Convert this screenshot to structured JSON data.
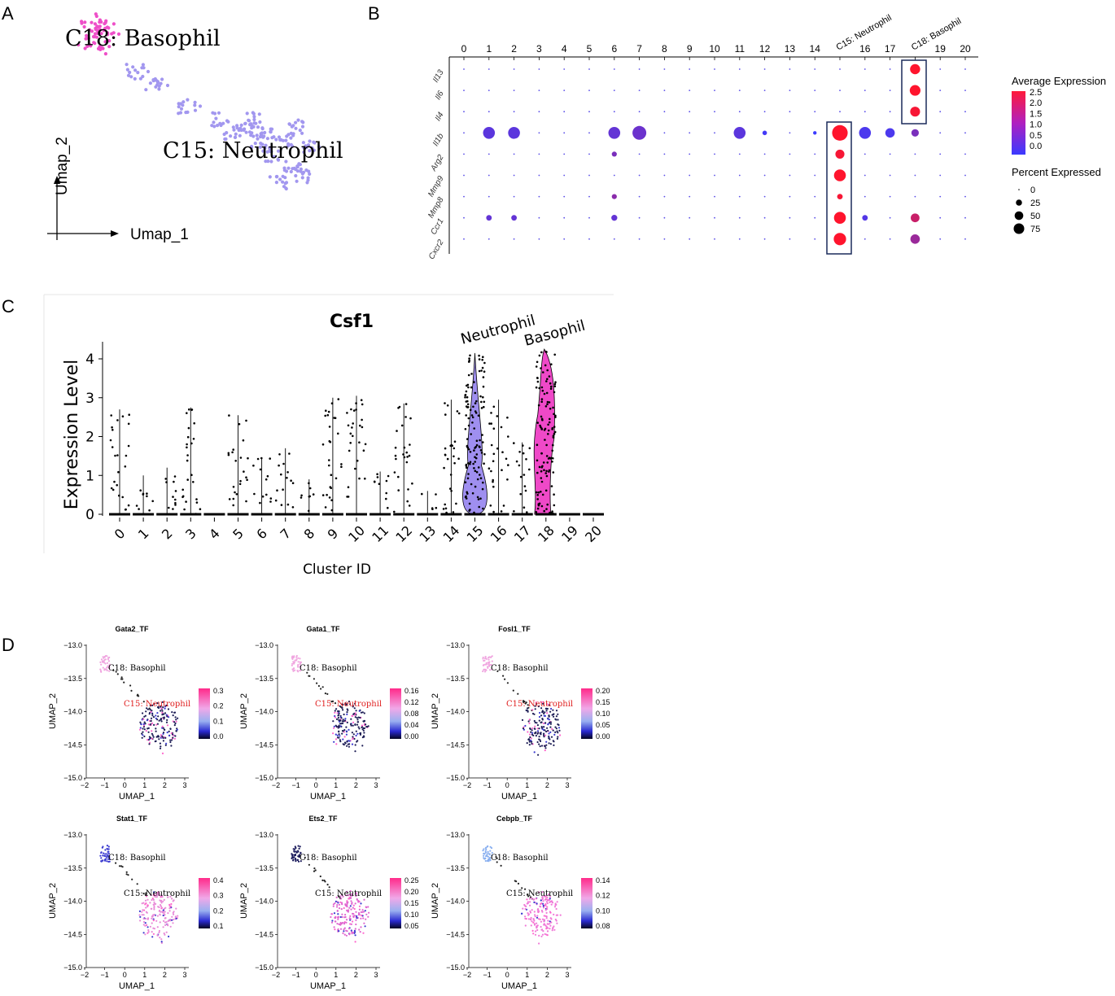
{
  "panel_labels": [
    "A",
    "B",
    "C",
    "D"
  ],
  "chart_data": [
    {
      "id": "A",
      "type": "scatter",
      "title": "",
      "xlabel": "Umap_1",
      "ylabel": "Umap_2",
      "annotations": [
        "C18: Basophil",
        "C15: Neutrophil"
      ],
      "series": [
        {
          "name": "C18: Basophil",
          "color": "#ee4fc8",
          "points": [
            [
              -1.2,
              -13.2
            ],
            [
              -1.1,
              -13.25
            ],
            [
              -1.0,
              -13.3
            ],
            [
              -1.15,
              -13.35
            ],
            [
              -1.05,
              -13.22
            ],
            [
              -0.95,
              -13.28
            ],
            [
              -1.1,
              -13.4
            ],
            [
              -1.2,
              -13.3
            ],
            [
              -0.9,
              -13.35
            ],
            [
              -1.0,
              -13.45
            ],
            [
              -0.85,
              -13.3
            ],
            [
              -1.25,
              -13.38
            ]
          ]
        },
        {
          "name": "C15: Neutrophil",
          "color": "#a297ef",
          "points": [
            [
              -0.5,
              -13.6
            ],
            [
              -0.2,
              -13.7
            ],
            [
              0.3,
              -13.85
            ],
            [
              0.8,
              -13.95
            ],
            [
              1.2,
              -14.0
            ],
            [
              1.5,
              -14.05
            ],
            [
              1.8,
              -14.1
            ],
            [
              2.0,
              -14.0
            ],
            [
              1.6,
              -14.2
            ],
            [
              1.9,
              -14.3
            ],
            [
              2.2,
              -14.15
            ],
            [
              1.4,
              -14.1
            ],
            [
              1.7,
              -14.4
            ],
            [
              2.1,
              -14.35
            ],
            [
              1.3,
              -13.95
            ],
            [
              1.0,
              -14.05
            ]
          ]
        }
      ]
    },
    {
      "id": "B",
      "type": "dotplot",
      "xlabel": "",
      "ylabel": "",
      "clusters": [
        "0",
        "1",
        "2",
        "3",
        "4",
        "5",
        "6",
        "7",
        "8",
        "9",
        "10",
        "11",
        "12",
        "13",
        "14",
        "C15: Neutrophil",
        "16",
        "17",
        "C18: Basophil",
        "19",
        "20"
      ],
      "genes": [
        "Il13",
        "Il6",
        "Il4",
        "Il1b",
        "Arg2",
        "Mmp9",
        "Mmp8",
        "Ccr1",
        "Cxcr2"
      ],
      "highlight_clusters": [
        "C15: Neutrophil",
        "C18: Basophil"
      ],
      "legend_title_color": "Average Expression",
      "legend_color_ticks": [
        "2.5",
        "2.0",
        "1.5",
        "1.0",
        "0.5",
        "0.0"
      ],
      "legend_title_size": "Percent Expressed",
      "legend_size_ticks": [
        "0",
        "25",
        "50",
        "75"
      ],
      "color_low": "#4b4bff",
      "color_high": "#ff1a1a",
      "dots": [
        {
          "gene": "Il13",
          "cluster": 18,
          "pct": 40,
          "avg": 2.5
        },
        {
          "gene": "Il6",
          "cluster": 18,
          "pct": 45,
          "avg": 2.5
        },
        {
          "gene": "Il4",
          "cluster": 18,
          "pct": 38,
          "avg": 2.4
        },
        {
          "gene": "Il1b",
          "cluster": 1,
          "pct": 55,
          "avg": 0.4
        },
        {
          "gene": "Il1b",
          "cluster": 2,
          "pct": 55,
          "avg": 0.4
        },
        {
          "gene": "Il1b",
          "cluster": 6,
          "pct": 55,
          "avg": 0.5
        },
        {
          "gene": "Il1b",
          "cluster": 7,
          "pct": 75,
          "avg": 0.6
        },
        {
          "gene": "Il1b",
          "cluster": 11,
          "pct": 55,
          "avg": 0.4
        },
        {
          "gene": "Il1b",
          "cluster": 12,
          "pct": 8,
          "avg": 0.1
        },
        {
          "gene": "Il1b",
          "cluster": 14,
          "pct": 5,
          "avg": 0.0
        },
        {
          "gene": "Il1b",
          "cluster": 15,
          "pct": 95,
          "avg": 2.5
        },
        {
          "gene": "Il1b",
          "cluster": 16,
          "pct": 55,
          "avg": 0.2
        },
        {
          "gene": "Il1b",
          "cluster": 17,
          "pct": 35,
          "avg": 0.2
        },
        {
          "gene": "Il1b",
          "cluster": 18,
          "pct": 22,
          "avg": 0.8
        },
        {
          "gene": "Arg2",
          "cluster": 6,
          "pct": 10,
          "avg": 0.8
        },
        {
          "gene": "Arg2",
          "cluster": 15,
          "pct": 32,
          "avg": 2.4
        },
        {
          "gene": "Mmp9",
          "cluster": 15,
          "pct": 55,
          "avg": 2.5
        },
        {
          "gene": "Mmp8",
          "cluster": 6,
          "pct": 10,
          "avg": 1.0
        },
        {
          "gene": "Mmp8",
          "cluster": 15,
          "pct": 12,
          "avg": 2.4
        },
        {
          "gene": "Ccr1",
          "cluster": 1,
          "pct": 12,
          "avg": 0.5
        },
        {
          "gene": "Ccr1",
          "cluster": 2,
          "pct": 12,
          "avg": 0.5
        },
        {
          "gene": "Ccr1",
          "cluster": 6,
          "pct": 14,
          "avg": 0.5
        },
        {
          "gene": "Ccr1",
          "cluster": 15,
          "pct": 55,
          "avg": 2.5
        },
        {
          "gene": "Ccr1",
          "cluster": 16,
          "pct": 12,
          "avg": 0.3
        },
        {
          "gene": "Ccr1",
          "cluster": 18,
          "pct": 30,
          "avg": 1.8
        },
        {
          "gene": "Cxcr2",
          "cluster": 15,
          "pct": 60,
          "avg": 2.5
        },
        {
          "gene": "Cxcr2",
          "cluster": 18,
          "pct": 35,
          "avg": 1.2
        }
      ]
    },
    {
      "id": "C",
      "type": "violin",
      "title": "Csf1",
      "xlabel": "Cluster ID",
      "ylabel": "Expression Level",
      "ylim": [
        0,
        4.3
      ],
      "yticks": [
        "0",
        "1",
        "2",
        "3",
        "4"
      ],
      "categories": [
        "0",
        "1",
        "2",
        "3",
        "4",
        "5",
        "6",
        "7",
        "8",
        "9",
        "10",
        "11",
        "12",
        "13",
        "14",
        "15",
        "16",
        "17",
        "18",
        "19",
        "20"
      ],
      "max_values": [
        2.7,
        1.0,
        1.2,
        2.75,
        0,
        2.55,
        1.45,
        1.7,
        0.9,
        3.0,
        3.05,
        1.1,
        2.85,
        0.6,
        2.95,
        4.15,
        2.95,
        1.85,
        4.25,
        0,
        0
      ],
      "violin_annotations": [
        "Neutrophil",
        "Basophil"
      ],
      "violin_colors": {
        "15": "#9f8ff0",
        "18": "#ef49c8"
      }
    },
    {
      "id": "D",
      "type": "scatter",
      "subplots": [
        {
          "title": "Gata2_TF",
          "legend_ticks": [
            "0.3",
            "0.2",
            "0.1",
            "0.0"
          ],
          "highlight_color": "#f0a6e0",
          "neutro_label_color": "#e02020",
          "cluster_color": "#1d1d55"
        },
        {
          "title": "Gata1_TF",
          "legend_ticks": [
            "0.16",
            "0.12",
            "0.08",
            "0.04",
            "0.00"
          ],
          "highlight_color": "#f0a6e0",
          "neutro_label_color": "#e02020",
          "cluster_color": "#1d1d55"
        },
        {
          "title": "Fosl1_TF",
          "legend_ticks": [
            "0.20",
            "0.15",
            "0.10",
            "0.05",
            "0.00"
          ],
          "highlight_color": "#f0a6e0",
          "neutro_label_color": "#e02020",
          "cluster_color": "#1d1d55"
        },
        {
          "title": "Stat1_TF",
          "legend_ticks": [
            "0.4",
            "0.3",
            "0.2",
            "0.1"
          ],
          "highlight_color": "#3a3ad0",
          "neutro_label_color": "#000000",
          "cluster_color": "#e88ad8"
        },
        {
          "title": "Ets2_TF",
          "legend_ticks": [
            "0.25",
            "0.20",
            "0.15",
            "0.10",
            "0.05"
          ],
          "highlight_color": "#18185a",
          "neutro_label_color": "#000000",
          "cluster_color": "#e066d0"
        },
        {
          "title": "Cebpb_TF",
          "legend_ticks": [
            "0.14",
            "0.12",
            "0.10",
            "0.08"
          ],
          "highlight_color": "#8ab0f0",
          "neutro_label_color": "#000000",
          "cluster_color": "#f07ad8"
        }
      ],
      "xlabel": "UMAP_1",
      "ylabel": "UMAP_2",
      "xticks": [
        "−2",
        "−1",
        "0",
        "1",
        "2",
        "3"
      ],
      "yticks": [
        "−13.0",
        "−13.5",
        "−14.0",
        "−14.5",
        "−15.0"
      ],
      "annotations": [
        "C18: Basophil",
        "C15: Neutrophil"
      ]
    }
  ]
}
